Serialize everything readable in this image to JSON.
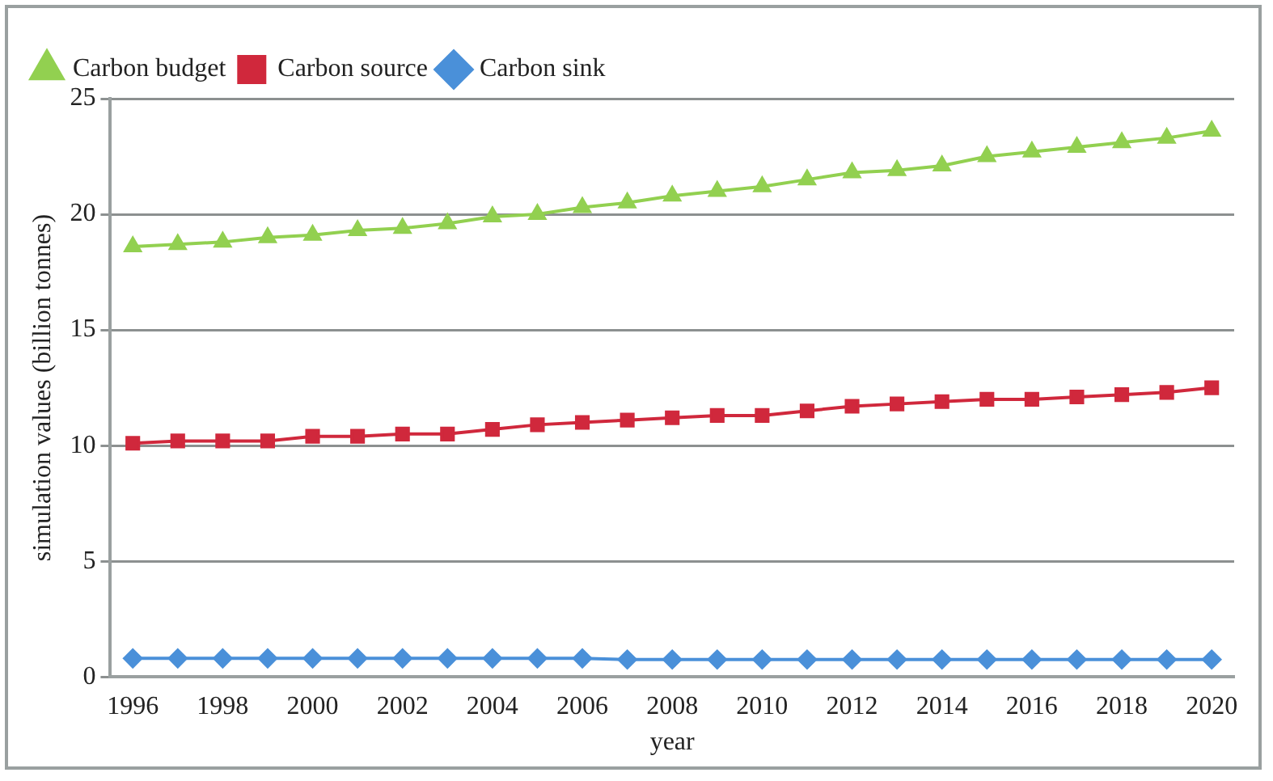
{
  "chart_data": {
    "type": "line",
    "xlabel": "year",
    "ylabel": "simulation values (billion tonnes)",
    "categories": [
      "1996",
      null,
      "1998",
      null,
      "2000",
      null,
      "2002",
      null,
      "2004",
      null,
      "2006",
      null,
      "2008",
      null,
      "2010",
      null,
      "2012",
      null,
      "2014",
      null,
      "2016",
      null,
      "2018",
      null,
      "2020"
    ],
    "series": [
      {
        "name": "Carbon budget",
        "color": "#92d050",
        "marker": "triangle",
        "values": [
          18.6,
          18.7,
          18.8,
          19.0,
          19.1,
          19.3,
          19.4,
          19.6,
          19.9,
          20.0,
          20.3,
          20.5,
          20.8,
          21.0,
          21.2,
          21.5,
          21.8,
          21.9,
          22.1,
          22.5,
          22.7,
          22.9,
          23.1,
          23.3,
          23.6
        ]
      },
      {
        "name": "Carbon source",
        "color": "#d0283c",
        "marker": "square",
        "values": [
          10.1,
          10.2,
          10.2,
          10.2,
          10.4,
          10.4,
          10.5,
          10.5,
          10.7,
          10.9,
          11.0,
          11.1,
          11.2,
          11.3,
          11.3,
          11.5,
          11.7,
          11.8,
          11.9,
          12.0,
          12.0,
          12.1,
          12.2,
          12.3,
          12.5
        ]
      },
      {
        "name": "Carbon sink",
        "color": "#4a90d9",
        "marker": "diamond",
        "values": [
          0.8,
          0.8,
          0.8,
          0.8,
          0.8,
          0.8,
          0.8,
          0.8,
          0.8,
          0.8,
          0.8,
          0.75,
          0.75,
          0.75,
          0.75,
          0.75,
          0.75,
          0.75,
          0.75,
          0.75,
          0.75,
          0.75,
          0.75,
          0.75,
          0.75
        ]
      }
    ],
    "ylim": [
      0,
      25
    ],
    "yticks": [
      0,
      5,
      10,
      15,
      20,
      25
    ],
    "grid": "y",
    "legend": "top left",
    "line_style": "solid"
  }
}
